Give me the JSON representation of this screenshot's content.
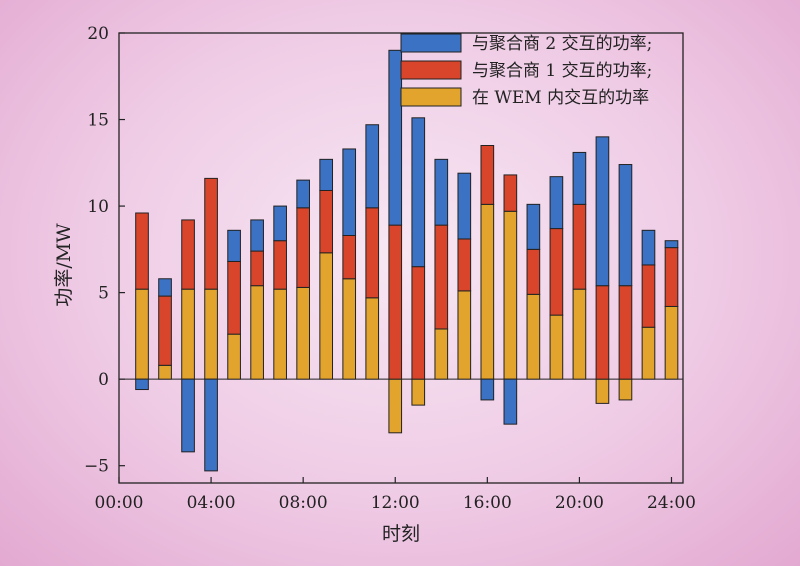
{
  "chart_data": {
    "type": "bar",
    "stacked": true,
    "xlabel": "时刻",
    "ylabel": "功率/MW",
    "ylim": [
      -6,
      20
    ],
    "xlim": [
      0,
      24.5
    ],
    "yticks": [
      -5,
      0,
      5,
      10,
      15,
      20
    ],
    "yticklabels": [
      "−5",
      "0",
      "5",
      "10",
      "15",
      "20"
    ],
    "xticks": [
      0,
      4,
      8,
      12,
      16,
      20,
      24
    ],
    "xticklabels": [
      "00:00",
      "04:00",
      "08:00",
      "12:00",
      "16:00",
      "20:00",
      "24:00"
    ],
    "legend_position": "top-right",
    "x": [
      1,
      2,
      3,
      4,
      5,
      6,
      7,
      8,
      9,
      10,
      11,
      12,
      13,
      14,
      15,
      16,
      17,
      18,
      19,
      20,
      21,
      22,
      23,
      24
    ],
    "series": [
      {
        "name": "在 WEM 内交互的功率",
        "color": "#e3a42e",
        "values": [
          5.2,
          0.8,
          5.2,
          5.2,
          2.6,
          5.4,
          5.2,
          5.3,
          7.3,
          5.8,
          4.7,
          -3.1,
          -1.5,
          2.9,
          5.1,
          10.1,
          9.7,
          4.9,
          3.7,
          5.2,
          -1.4,
          -1.2,
          3.0,
          4.2
        ]
      },
      {
        "name": "与聚合商 1 交互的功率;",
        "color": "#d8452a",
        "values": [
          4.4,
          4.0,
          4.0,
          6.4,
          4.2,
          2.0,
          2.8,
          4.6,
          3.6,
          2.5,
          5.2,
          8.9,
          6.5,
          6.0,
          3.0,
          3.4,
          2.1,
          2.6,
          5.0,
          4.9,
          5.4,
          5.4,
          3.6,
          3.4
        ]
      },
      {
        "name": "与聚合商 2 交互的功率;",
        "color": "#3b72c4",
        "values": [
          -0.6,
          1.0,
          -4.2,
          -5.3,
          1.8,
          1.8,
          2.0,
          1.6,
          1.8,
          5.0,
          4.8,
          10.1,
          8.6,
          3.8,
          3.8,
          -1.2,
          -2.6,
          2.6,
          3.0,
          3.0,
          8.6,
          7.0,
          2.0,
          0.4
        ]
      }
    ]
  }
}
